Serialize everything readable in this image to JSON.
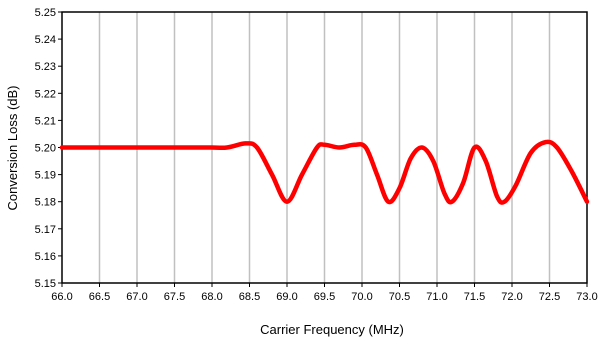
{
  "chart_data": {
    "type": "line",
    "xlabel": "Carrier Frequency (MHz)",
    "ylabel": "Conversion Loss (dB)",
    "xlim": [
      66.0,
      73.0
    ],
    "ylim": [
      5.15,
      5.25
    ],
    "x_ticks": [
      "66.0",
      "66.5",
      "67.0",
      "67.5",
      "68.0",
      "68.5",
      "69.0",
      "69.5",
      "70.0",
      "70.5",
      "71.0",
      "71.5",
      "72.0",
      "72.5",
      "73.0"
    ],
    "y_ticks": [
      "5.15",
      "5.16",
      "5.17",
      "5.18",
      "5.19",
      "5.20",
      "5.21",
      "5.22",
      "5.23",
      "5.24",
      "5.25"
    ],
    "grid": "vertical",
    "line_color": "#ff0000",
    "series": [
      {
        "x": [
          66.0,
          66.5,
          67.0,
          67.5,
          68.0,
          68.2,
          68.45,
          68.6,
          68.8,
          69.0,
          69.2,
          69.4,
          69.5,
          69.7,
          69.9,
          70.05,
          70.2,
          70.35,
          70.5,
          70.65,
          70.8,
          70.95,
          71.1,
          71.2,
          71.35,
          71.5,
          71.65,
          71.8,
          71.9,
          72.05,
          72.25,
          72.45,
          72.6,
          72.8,
          73.0
        ],
        "y": [
          5.2,
          5.2,
          5.2,
          5.2,
          5.2,
          5.2,
          5.2015,
          5.2,
          5.19,
          5.18,
          5.19,
          5.2,
          5.201,
          5.2,
          5.201,
          5.2,
          5.19,
          5.18,
          5.185,
          5.196,
          5.2,
          5.195,
          5.183,
          5.18,
          5.187,
          5.2,
          5.195,
          5.182,
          5.18,
          5.186,
          5.198,
          5.202,
          5.2,
          5.191,
          5.18
        ]
      }
    ]
  }
}
